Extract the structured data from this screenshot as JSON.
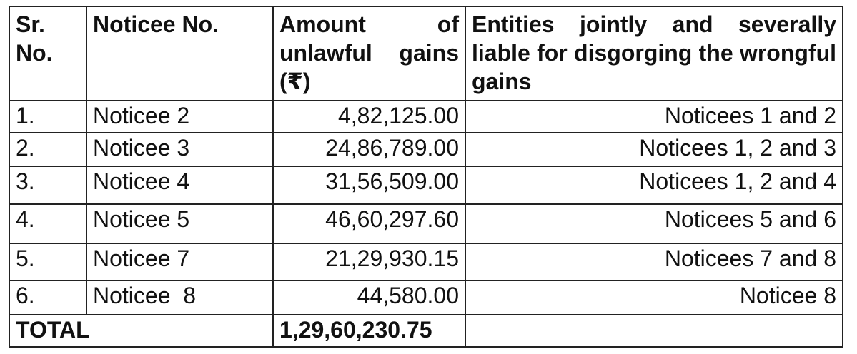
{
  "table": {
    "headers": [
      "Sr. No.",
      "Noticee No.",
      "Amount of unlawful gains (₹)",
      "Entities jointly and severally liable for disgorging the wrongful gains"
    ],
    "rows": [
      [
        "1.",
        "Noticee 2",
        "4,82,125.00",
        "Noticees 1 and 2"
      ],
      [
        "2.",
        "Noticee 3",
        "24,86,789.00",
        "Noticees 1, 2 and 3"
      ],
      [
        "3.",
        "Noticee 4",
        "31,56,509.00",
        "Noticees 1, 2 and 4"
      ],
      [
        "4.",
        "Noticee 5",
        "46,60,297.60",
        "Noticees 5 and 6"
      ],
      [
        "5.",
        "Noticee 7",
        "21,29,930.15",
        "Noticees 7 and 8"
      ],
      [
        "6.",
        "Noticee  8",
        "44,580.00",
        "Noticee 8"
      ]
    ],
    "total": {
      "label": "TOTAL",
      "amount": "1,29,60,230.75"
    }
  }
}
